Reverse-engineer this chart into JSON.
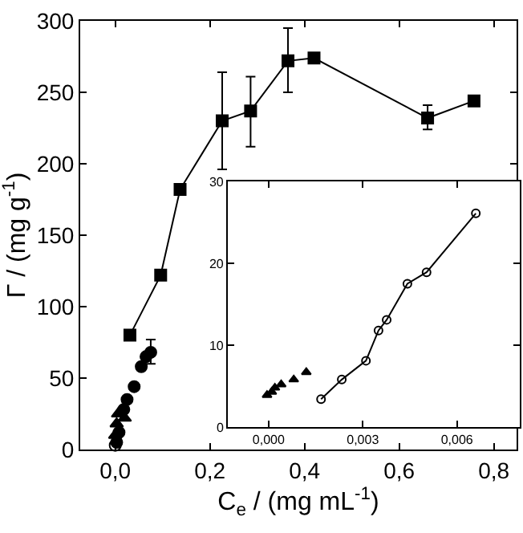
{
  "chart_data": [
    {
      "type": "line",
      "xlabel": "C$_{e}$ / (mg mL$^{-1}$)",
      "ylabel": "Γ / (mg g$^{-1}$)",
      "xlim": [
        -0.074,
        0.848
      ],
      "xticks": [
        {
          "value": 0,
          "label": "0,0"
        },
        {
          "value": 0.2,
          "label": "0,2"
        },
        {
          "value": 0.4,
          "label": "0,4"
        },
        {
          "value": 0.6,
          "label": "0,6"
        },
        {
          "value": 0.8,
          "label": "0,8"
        }
      ],
      "ylim": [
        0,
        300
      ],
      "yticks": [
        0,
        50,
        100,
        150,
        200,
        250,
        300
      ],
      "grid": false,
      "series": [
        {
          "color": "#000000",
          "marker": "square",
          "x": [
            0.031,
            0.096,
            0.137,
            0.226,
            0.286,
            0.365,
            0.42,
            0.66,
            0.758
          ],
          "values": [
            80,
            122,
            182,
            230,
            237,
            272,
            274,
            232,
            244
          ],
          "errors": [
            null,
            null,
            null,
            [
              196,
              264
            ],
            [
              212,
              261
            ],
            [
              250,
              295
            ],
            null,
            [
              224,
              241
            ],
            null
          ]
        },
        {
          "type": "scatter",
          "color": "#000000",
          "marker": "circle",
          "x": [
            0.003,
            0.008,
            0.012,
            0.018,
            0.025,
            0.032,
            0.04,
            0.055,
            0.065,
            0.075
          ],
          "values": [
            5,
            12,
            null,
            28,
            35,
            null,
            44,
            58,
            65,
            68
          ],
          "errors": [
            null,
            null,
            null,
            null,
            null,
            null,
            null,
            null,
            null,
            [
              60,
              77
            ]
          ]
        },
        {
          "type": "scatter",
          "color": "#000000",
          "marker": "triangle",
          "x": [
            0.0,
            0.003,
            0.006,
            0.02
          ],
          "values": [
            10,
            18,
            25,
            22
          ]
        },
        {
          "type": "scatter",
          "color": "#000000",
          "marker": "open circle",
          "x": [
            0.0
          ],
          "values": [
            3
          ]
        }
      ]
    },
    {
      "type": "line",
      "xlim": [
        -0.0013,
        0.008
      ],
      "xticks": [
        {
          "value": 0,
          "label": "0,000"
        },
        {
          "value": 0.003,
          "label": "0,003"
        },
        {
          "value": 0.006,
          "label": "0,006"
        }
      ],
      "ylim": [
        0,
        30
      ],
      "yticks": [
        0,
        10,
        20,
        30
      ],
      "grid": false,
      "series": [
        {
          "color": "#000000",
          "marker": "open circle",
          "x": [
            0.00167,
            0.00233,
            0.0031,
            0.0035,
            0.00376,
            0.00442,
            0.00503,
            0.0066
          ],
          "values": [
            3.4,
            5.8,
            8.1,
            11.8,
            13.1,
            17.5,
            18.9,
            26.1
          ]
        },
        {
          "type": "scatter",
          "color": "#000000",
          "marker": "triangle",
          "x": [
            -5e-05,
            0.0001,
            0.0002,
            0.0004,
            0.0008,
            0.0012
          ],
          "values": [
            3.9,
            4.3,
            4.8,
            5.2,
            5.8,
            6.7
          ]
        }
      ]
    }
  ]
}
